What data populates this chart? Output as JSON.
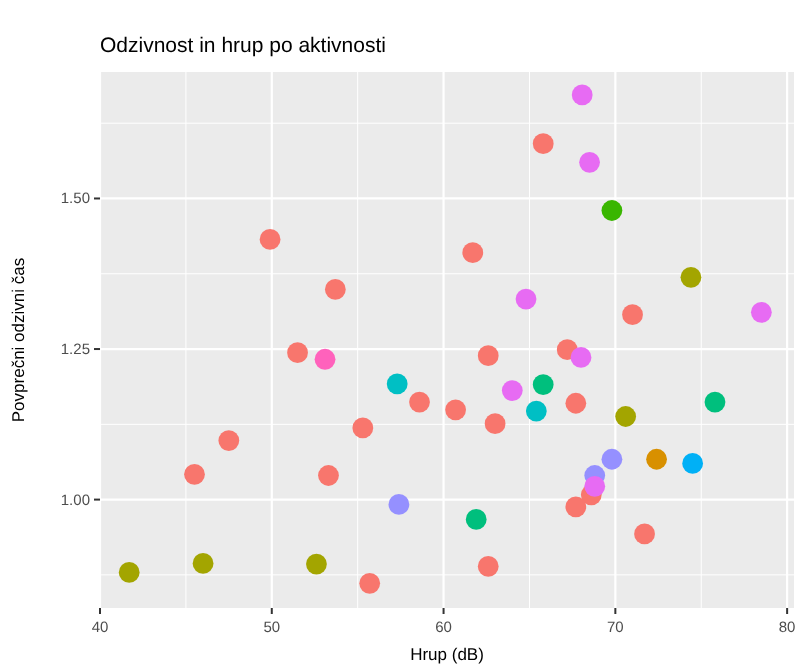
{
  "chart_data": {
    "type": "scatter",
    "title": "Odzivnost in hrup po aktivnosti",
    "xlabel": "Hrup (dB)",
    "ylabel": "Povprečni odzivni čas",
    "xlim": [
      40,
      80.4
    ],
    "ylim": [
      0.82,
      1.71
    ],
    "xticks": [
      40,
      50,
      60,
      70,
      80
    ],
    "yticks": [
      {
        "value": 1,
        "label": "1.00"
      },
      {
        "value": 1.25,
        "label": "1.25"
      },
      {
        "value": 1.5,
        "label": "1.50"
      }
    ],
    "grid": true,
    "marker": "circle",
    "series": [
      {
        "color": "#f8766d",
        "x": [
          49.9,
          53.7,
          51.5,
          65.8,
          61.7,
          71.0,
          62.6,
          67.2,
          60.7,
          67.7,
          63.0,
          68.6,
          67.7,
          71.7,
          62.6,
          58.6,
          55.3,
          47.5,
          45.5,
          53.3,
          55.7
        ],
        "values": [
          1.432,
          1.349,
          1.244,
          1.591,
          1.41,
          1.307,
          1.239,
          1.249,
          1.149,
          1.16,
          1.126,
          1.008,
          0.988,
          0.943,
          0.889,
          1.162,
          1.119,
          1.098,
          1.042,
          1.04,
          0.861
        ]
      },
      {
        "color": "#d89000",
        "x": [
          72.4
        ],
        "values": [
          1.067
        ]
      },
      {
        "color": "#a3a500",
        "x": [
          74.4,
          70.6,
          41.7,
          46.0,
          52.6
        ],
        "values": [
          1.369,
          1.138,
          0.879,
          0.894,
          0.893
        ]
      },
      {
        "color": "#39b600",
        "x": [
          69.8
        ],
        "values": [
          1.48
        ]
      },
      {
        "color": "#00bf7d",
        "x": [
          65.8,
          75.8,
          61.9
        ],
        "values": [
          1.191,
          1.162,
          0.967
        ]
      },
      {
        "color": "#00bfc4",
        "x": [
          65.4,
          57.3
        ],
        "values": [
          1.147,
          1.192
        ]
      },
      {
        "color": "#00b0f6",
        "x": [
          74.5
        ],
        "values": [
          1.06
        ]
      },
      {
        "color": "#9590ff",
        "x": [
          69.8,
          68.8,
          57.4
        ],
        "values": [
          1.067,
          1.04,
          0.992
        ]
      },
      {
        "color": "#e76bf3",
        "x": [
          68.07,
          68.5,
          64.8,
          78.5,
          68.0,
          64.0,
          68.8
        ],
        "values": [
          1.672,
          1.56,
          1.333,
          1.311,
          1.236,
          1.181,
          1.022
        ]
      },
      {
        "color": "#ff62bc",
        "x": [
          53.1
        ],
        "values": [
          1.233
        ]
      }
    ]
  }
}
